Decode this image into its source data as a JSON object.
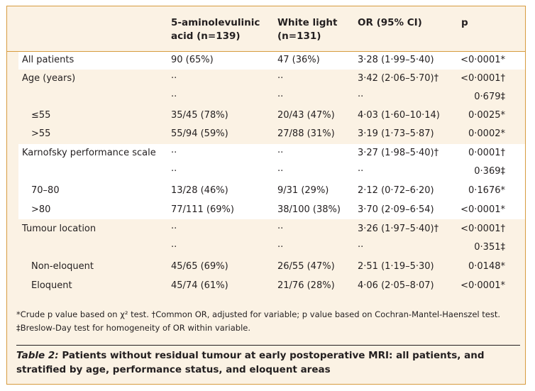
{
  "table": {
    "headers": {
      "label": "",
      "ala_line1": "5-aminolevulinic",
      "ala_line2": "acid (n=139)",
      "white_line1": "White light",
      "white_line2": "(n=131)",
      "or": "OR (95% CI)",
      "p": "p"
    },
    "rows": [
      {
        "label": "All patients",
        "ala": "90 (65%)",
        "white": "47 (36%)",
        "or": "3·28 (1·99–5·40)",
        "p": "<0·0001*"
      },
      {
        "label": "Age (years)",
        "ala": "··",
        "white": "··",
        "or": "3·42 (2·06–5·70)†",
        "p": "<0·0001†"
      },
      {
        "label": "",
        "ala": "··",
        "white": "··",
        "or": "··",
        "p": "0·679‡"
      },
      {
        "label": "≤55",
        "ala": "35/45 (78%)",
        "white": "20/43 (47%)",
        "or": "4·03 (1·60–10·14)",
        "p": "0·0025*"
      },
      {
        "label": ">55",
        "ala": "55/94 (59%)",
        "white": "27/88 (31%)",
        "or": "3·19 (1·73–5·87)",
        "p": "0·0002*"
      },
      {
        "label": "Karnofsky performance scale",
        "ala": "··",
        "white": "··",
        "or": "3·27 (1·98–5·40)†",
        "p": "0·0001†"
      },
      {
        "label": "",
        "ala": "··",
        "white": "··",
        "or": "··",
        "p": "0·369‡"
      },
      {
        "label": "70–80",
        "ala": "13/28 (46%)",
        "white": "9/31 (29%)",
        "or": "2·12 (0·72–6·20)",
        "p": "0·1676*"
      },
      {
        "label": ">80",
        "ala": "77/111 (69%)",
        "white": "38/100 (38%)",
        "or": "3·70 (2·09–6·54)",
        "p": "<0·0001*"
      },
      {
        "label": "Tumour location",
        "ala": "··",
        "white": "··",
        "or": "3·26 (1·97–5·40)†",
        "p": "<0·0001†"
      },
      {
        "label": "",
        "ala": "··",
        "white": "··",
        "or": "··",
        "p": "0·351‡"
      },
      {
        "label": "Non-eloquent",
        "ala": "45/65 (69%)",
        "white": "26/55 (47%)",
        "or": "2·51 (1·19–5·30)",
        "p": "0·0148*"
      },
      {
        "label": "Eloquent",
        "ala": "45/74 (61%)",
        "white": "21/76 (28%)",
        "or": "4·06 (2·05–8·07)",
        "p": "<0·0001*"
      }
    ]
  },
  "footnote": "*Crude p value based on χ² test. †Common OR, adjusted for variable; p value based on Cochran-Mantel-Haenszel test. ‡Breslow-Day test for homogeneity of OR within variable.",
  "caption": {
    "label": "Table 2:",
    "text": " Patients without residual tumour at early postoperative MRI: all patients, and stratified by age, performance status, and eloquent areas"
  },
  "colors": {
    "border": "#d79c3f",
    "tan_band": "#fbf2e4",
    "white_band": "#ffffff"
  }
}
